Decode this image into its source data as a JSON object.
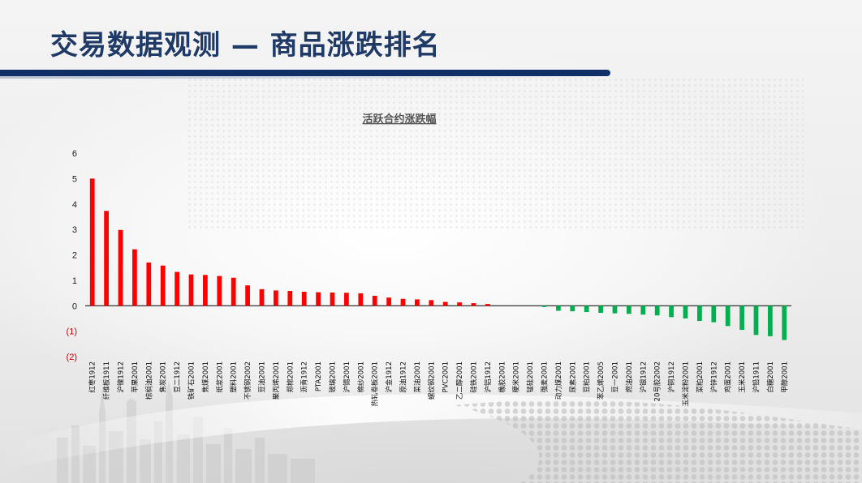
{
  "header": {
    "title": "交易数据观测 — 商品涨跌排名"
  },
  "colors": {
    "up": "#ff0000",
    "down": "#00b050",
    "title_text": "#1f3a66",
    "header_bar": "#0f2f66"
  },
  "chart_data": {
    "type": "bar",
    "title": "活跃合约涨跌幅",
    "xlabel": "",
    "ylabel": "",
    "ylim": [
      -2,
      6
    ],
    "yticks": [
      6,
      5,
      4,
      3,
      2,
      1,
      0,
      -1,
      -2
    ],
    "ytick_labels": [
      "6",
      "5",
      "4",
      "3",
      "2",
      "1",
      "0",
      "(1)",
      "(2)"
    ],
    "grid": false,
    "legend": "none",
    "categories": [
      "红枣1912",
      "纤维板1911",
      "沪镍1912",
      "苹果2001",
      "棕榈油2001",
      "焦炭2001",
      "豆二1912",
      "铁矿石2001",
      "焦煤2001",
      "纸浆2001",
      "塑料2001",
      "不锈钢2002",
      "豆油2001",
      "聚丙烯2001",
      "郑棉2001",
      "沥青1912",
      "PTA2001",
      "玻璃2001",
      "沪锡2001",
      "棉纱2001",
      "热轧卷板2001",
      "沪金1912",
      "原油1912",
      "菜油2001",
      "螺纹钢2001",
      "PVC2001",
      "乙二醇2001",
      "硅铁2001",
      "沪铝1912",
      "橡胶2001",
      "粳米2001",
      "锰硅2001",
      "强麦2001",
      "动力煤2001",
      "尿素2001",
      "豆粕2001",
      "苯乙烯2005",
      "豆一2001",
      "燃油2001",
      "沪银1912",
      "20号胶2002",
      "沪铜1912",
      "玉米淀粉2001",
      "菜粕2001",
      "沪锌1912",
      "鸡蛋2001",
      "玉米2001",
      "沪铅1911",
      "白糖2001",
      "甲醇2001"
    ],
    "values": [
      5.0,
      3.73,
      2.98,
      2.22,
      1.7,
      1.58,
      1.33,
      1.23,
      1.21,
      1.17,
      1.1,
      0.8,
      0.65,
      0.6,
      0.58,
      0.55,
      0.53,
      0.52,
      0.51,
      0.49,
      0.39,
      0.32,
      0.27,
      0.25,
      0.22,
      0.15,
      0.13,
      0.1,
      0.07,
      0.0,
      0.0,
      0.0,
      -0.05,
      -0.2,
      -0.22,
      -0.25,
      -0.28,
      -0.3,
      -0.32,
      -0.35,
      -0.38,
      -0.45,
      -0.5,
      -0.6,
      -0.65,
      -0.8,
      -0.95,
      -1.15,
      -1.2,
      -1.35
    ]
  }
}
